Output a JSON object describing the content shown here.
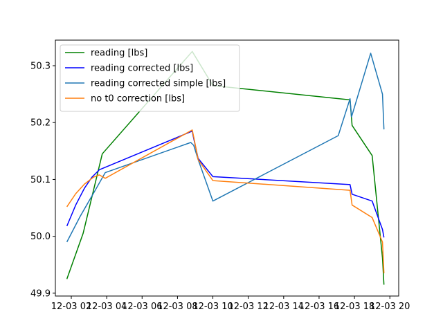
{
  "chart_data": {
    "type": "line",
    "x_axis_type": "datetime",
    "xlim": [
      "12-03 01:06",
      "12-03 20:30"
    ],
    "ylim": [
      49.895,
      50.345
    ],
    "y_ticks": [
      49.9,
      50.0,
      50.1,
      50.2,
      50.3
    ],
    "y_tick_labels": [
      "49.9",
      "50.0",
      "50.1",
      "50.2",
      "50.3"
    ],
    "x_ticks": [
      "12-03 02:00",
      "12-03 04:00",
      "12-03 06:00",
      "12-03 08:00",
      "12-03 10:00",
      "12-03 12:00",
      "12-03 14:00",
      "12-03 16:00",
      "12-03 18:00",
      "12-03 20:00"
    ],
    "x_tick_labels": [
      "12-03 02",
      "12-03 04",
      "12-03 06",
      "12-03 08",
      "12-03 10",
      "12-03 12",
      "12-03 14",
      "12-03 16",
      "12-03 18",
      "12-03 20"
    ],
    "grid": false,
    "legend_position": "upper-left",
    "series": [
      {
        "name": "reading [lbs]",
        "color": "#008000",
        "x": [
          "12-03 01:45",
          "12-03 02:40",
          "12-03 03:45",
          "12-03 08:50",
          "12-03 10:00",
          "12-03 17:45",
          "12-03 17:52",
          "12-03 19:00",
          "12-03 19:35",
          "12-03 19:40"
        ],
        "y": [
          49.925,
          50.005,
          50.145,
          50.325,
          50.265,
          50.24,
          50.195,
          50.142,
          49.962,
          49.915
        ]
      },
      {
        "name": "reading corrected [lbs]",
        "color": "#0000ff",
        "x": [
          "12-03 01:45",
          "12-03 02:15",
          "12-03 02:45",
          "12-03 03:10",
          "12-03 03:35",
          "12-03 08:50",
          "12-03 08:55",
          "12-03 09:10",
          "12-03 10:00",
          "12-03 17:45",
          "12-03 17:52",
          "12-03 19:00",
          "12-03 19:35",
          "12-03 19:40"
        ],
        "y": [
          50.018,
          50.055,
          50.085,
          50.104,
          50.117,
          50.185,
          50.172,
          50.137,
          50.105,
          50.091,
          50.074,
          50.062,
          50.012,
          49.998
        ]
      },
      {
        "name": "reading corrected simple [lbs]",
        "color": "#1f77b4",
        "x": [
          "12-03 01:45",
          "12-03 02:30",
          "12-03 03:20",
          "12-03 03:55",
          "12-03 08:45",
          "12-03 08:55",
          "12-03 09:10",
          "12-03 10:00",
          "12-03 17:05",
          "12-03 17:45",
          "12-03 17:50",
          "12-03 18:55",
          "12-03 19:35",
          "12-03 19:40"
        ],
        "y": [
          49.99,
          50.035,
          50.08,
          50.112,
          50.165,
          50.16,
          50.135,
          50.062,
          50.177,
          50.242,
          50.21,
          50.322,
          50.25,
          50.188
        ]
      },
      {
        "name": "no t0 correction [lbs]",
        "color": "#ff7f0e",
        "x": [
          "12-03 01:45",
          "12-03 02:15",
          "12-03 02:45",
          "12-03 03:15",
          "12-03 03:35",
          "12-03 03:55",
          "12-03 08:50",
          "12-03 08:55",
          "12-03 09:10",
          "12-03 10:00",
          "12-03 17:45",
          "12-03 17:52",
          "12-03 19:00",
          "12-03 19:35",
          "12-03 19:40"
        ],
        "y": [
          50.052,
          50.075,
          50.092,
          50.104,
          50.108,
          50.102,
          50.187,
          50.175,
          50.135,
          50.098,
          50.081,
          50.055,
          50.033,
          49.99,
          49.935
        ]
      }
    ]
  }
}
